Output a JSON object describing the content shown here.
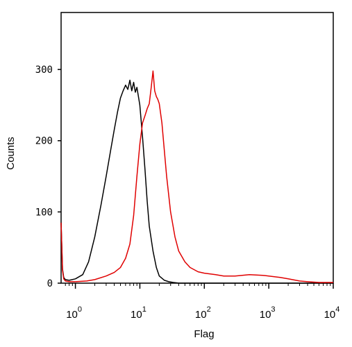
{
  "chart_data": {
    "type": "line",
    "title": "",
    "xlabel": "Flag",
    "ylabel": "Counts",
    "x_scale": "log",
    "xlim": [
      0.6,
      10000
    ],
    "ylim": [
      0,
      380
    ],
    "y_ticks": [
      0,
      100,
      200,
      300
    ],
    "x_ticks": [
      {
        "value": 1,
        "base": "10",
        "exp": "0"
      },
      {
        "value": 10,
        "base": "10",
        "exp": "1"
      },
      {
        "value": 100,
        "base": "10",
        "exp": "2"
      },
      {
        "value": 1000,
        "base": "10",
        "exp": "3"
      },
      {
        "value": 10000,
        "base": "10",
        "exp": "4"
      }
    ],
    "grid": false,
    "series": [
      {
        "color": "#000000",
        "x": [
          0.6,
          0.63,
          0.66,
          0.7,
          0.8,
          1.0,
          1.3,
          1.6,
          2.0,
          2.5,
          3.0,
          3.5,
          4.0,
          4.5,
          5.0,
          5.5,
          6.0,
          6.5,
          7.0,
          7.5,
          8.0,
          8.5,
          9.0,
          10.0,
          11.0,
          12.0,
          13.0,
          14.0,
          16.0,
          18.0,
          20.0,
          24.0,
          28.0,
          33.0,
          40.0,
          60.0,
          100.0,
          1000.0,
          10000.0
        ],
        "y": [
          85,
          20,
          8,
          5,
          4,
          6,
          12,
          30,
          65,
          110,
          150,
          185,
          215,
          240,
          260,
          270,
          278,
          272,
          285,
          270,
          282,
          268,
          275,
          250,
          205,
          160,
          115,
          80,
          45,
          22,
          10,
          4,
          2,
          1,
          0,
          0,
          0,
          0,
          0
        ]
      },
      {
        "color": "#e00000",
        "x": [
          0.6,
          0.63,
          0.66,
          0.7,
          0.8,
          1.0,
          1.5,
          2.0,
          3.0,
          4.0,
          5.0,
          6.0,
          7.0,
          8.0,
          9.0,
          10.0,
          11.0,
          12.0,
          13.0,
          14.0,
          15.0,
          16.0,
          17.0,
          18.0,
          19.0,
          20.0,
          22.0,
          24.0,
          26.0,
          30.0,
          35.0,
          40.0,
          50.0,
          60.0,
          80.0,
          100.0,
          150.0,
          200.0,
          300.0,
          500.0,
          800.0,
          1000.0,
          1500.0,
          2000.0,
          3000.0,
          4000.0,
          6000.0,
          10000.0
        ],
        "y": [
          85,
          18,
          6,
          3,
          2,
          2,
          3,
          5,
          10,
          15,
          22,
          35,
          55,
          95,
          150,
          195,
          225,
          235,
          245,
          252,
          275,
          298,
          270,
          262,
          258,
          252,
          225,
          185,
          150,
          100,
          65,
          45,
          30,
          22,
          16,
          14,
          12,
          10,
          10,
          12,
          11,
          10,
          8,
          6,
          3,
          2,
          1,
          1
        ]
      }
    ]
  }
}
